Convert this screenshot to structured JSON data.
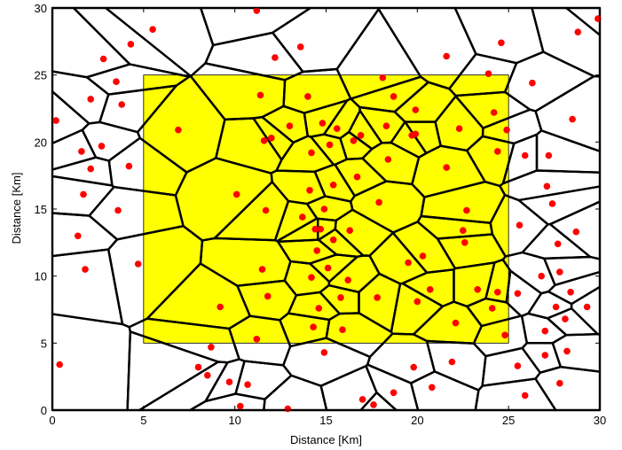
{
  "chart_data": {
    "type": "scatter",
    "title": "",
    "xlabel": "Distance [Km]",
    "ylabel": "Distance [Km]",
    "xlim": [
      0,
      30
    ],
    "ylim": [
      0,
      30
    ],
    "xticks": [
      0,
      5,
      10,
      15,
      20,
      25,
      30
    ],
    "yticks": [
      0,
      5,
      10,
      15,
      20,
      25,
      30
    ],
    "grid": false,
    "legend": "none",
    "region": {
      "x": [
        5,
        25
      ],
      "y": [
        5,
        25
      ],
      "color": "#ffff00"
    },
    "point_color": "#ff0000",
    "cell_edge_color": "#000000",
    "points": [
      [
        0.2,
        21.6
      ],
      [
        0.4,
        3.4
      ],
      [
        1.4,
        13.0
      ],
      [
        1.6,
        19.3
      ],
      [
        1.7,
        16.1
      ],
      [
        1.8,
        10.5
      ],
      [
        2.1,
        23.2
      ],
      [
        2.1,
        18.0
      ],
      [
        2.7,
        19.7
      ],
      [
        2.8,
        26.2
      ],
      [
        3.5,
        24.5
      ],
      [
        3.6,
        14.9
      ],
      [
        3.8,
        22.8
      ],
      [
        4.2,
        18.2
      ],
      [
        4.3,
        27.3
      ],
      [
        4.7,
        10.9
      ],
      [
        5.5,
        28.4
      ],
      [
        6.9,
        20.9
      ],
      [
        8.0,
        3.2
      ],
      [
        8.5,
        2.6
      ],
      [
        8.7,
        4.7
      ],
      [
        9.2,
        7.7
      ],
      [
        9.7,
        2.1
      ],
      [
        10.1,
        16.1
      ],
      [
        10.3,
        0.3
      ],
      [
        10.7,
        1.9
      ],
      [
        11.2,
        5.3
      ],
      [
        11.2,
        29.8
      ],
      [
        11.4,
        23.5
      ],
      [
        11.5,
        10.5
      ],
      [
        11.6,
        20.1
      ],
      [
        11.7,
        14.9
      ],
      [
        11.8,
        8.5
      ],
      [
        12.0,
        20.3
      ],
      [
        12.2,
        26.3
      ],
      [
        12.9,
        0.1
      ],
      [
        13.0,
        21.2
      ],
      [
        13.6,
        27.1
      ],
      [
        13.7,
        14.4
      ],
      [
        14.0,
        23.4
      ],
      [
        14.1,
        16.4
      ],
      [
        14.2,
        19.2
      ],
      [
        14.2,
        9.9
      ],
      [
        14.3,
        6.2
      ],
      [
        14.4,
        13.5
      ],
      [
        14.5,
        11.9
      ],
      [
        14.6,
        7.6
      ],
      [
        14.7,
        13.5
      ],
      [
        14.8,
        21.4
      ],
      [
        14.9,
        4.3
      ],
      [
        14.9,
        15.0
      ],
      [
        15.1,
        10.6
      ],
      [
        15.2,
        19.8
      ],
      [
        15.4,
        16.8
      ],
      [
        15.4,
        12.7
      ],
      [
        15.6,
        21.0
      ],
      [
        15.8,
        8.4
      ],
      [
        15.9,
        6.0
      ],
      [
        16.2,
        9.7
      ],
      [
        16.3,
        13.4
      ],
      [
        16.5,
        20.1
      ],
      [
        16.7,
        17.4
      ],
      [
        16.9,
        20.5
      ],
      [
        17.0,
        0.8
      ],
      [
        17.6,
        0.4
      ],
      [
        17.8,
        8.4
      ],
      [
        17.9,
        15.5
      ],
      [
        18.1,
        24.8
      ],
      [
        18.3,
        21.2
      ],
      [
        18.4,
        18.7
      ],
      [
        18.7,
        1.3
      ],
      [
        18.7,
        23.4
      ],
      [
        19.5,
        11.0
      ],
      [
        19.7,
        20.5
      ],
      [
        19.8,
        3.2
      ],
      [
        19.9,
        20.6
      ],
      [
        19.9,
        22.4
      ],
      [
        20.0,
        8.1
      ],
      [
        20.3,
        11.5
      ],
      [
        20.7,
        9.0
      ],
      [
        20.8,
        1.7
      ],
      [
        21.6,
        26.4
      ],
      [
        21.6,
        18.1
      ],
      [
        21.9,
        3.6
      ],
      [
        22.1,
        6.5
      ],
      [
        22.3,
        21.0
      ],
      [
        22.5,
        13.4
      ],
      [
        22.6,
        12.5
      ],
      [
        22.7,
        14.9
      ],
      [
        23.3,
        9.0
      ],
      [
        23.9,
        25.1
      ],
      [
        24.1,
        7.6
      ],
      [
        24.2,
        22.2
      ],
      [
        24.4,
        19.3
      ],
      [
        24.4,
        8.8
      ],
      [
        24.6,
        27.4
      ],
      [
        24.8,
        5.6
      ],
      [
        24.9,
        20.9
      ],
      [
        25.5,
        8.7
      ],
      [
        25.5,
        3.3
      ],
      [
        25.6,
        13.8
      ],
      [
        25.9,
        1.1
      ],
      [
        25.9,
        19.0
      ],
      [
        26.3,
        24.4
      ],
      [
        26.8,
        10.0
      ],
      [
        27.0,
        5.9
      ],
      [
        27.0,
        4.1
      ],
      [
        27.1,
        16.7
      ],
      [
        27.2,
        19.0
      ],
      [
        27.4,
        15.4
      ],
      [
        27.6,
        7.7
      ],
      [
        27.7,
        12.4
      ],
      [
        27.8,
        2.0
      ],
      [
        27.8,
        10.3
      ],
      [
        28.1,
        6.8
      ],
      [
        28.2,
        4.4
      ],
      [
        28.4,
        8.8
      ],
      [
        28.5,
        21.7
      ],
      [
        28.7,
        13.3
      ],
      [
        28.8,
        28.2
      ],
      [
        29.3,
        7.7
      ],
      [
        29.9,
        29.2
      ]
    ]
  }
}
